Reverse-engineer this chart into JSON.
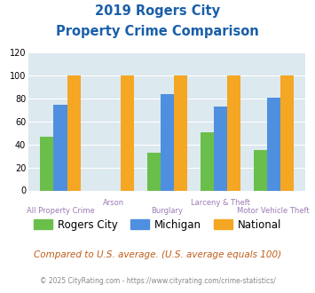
{
  "title_line1": "2019 Rogers City",
  "title_line2": "Property Crime Comparison",
  "categories": [
    "All Property Crime",
    "Arson",
    "Burglary",
    "Larceny & Theft",
    "Motor Vehicle Theft"
  ],
  "rogers_city": [
    47,
    0,
    33,
    51,
    35
  ],
  "michigan": [
    75,
    0,
    84,
    73,
    81
  ],
  "national": [
    100,
    100,
    100,
    100,
    100
  ],
  "color_rogers": "#6abf4b",
  "color_michigan": "#4f8fdf",
  "color_national": "#f5a623",
  "ylim": [
    0,
    120
  ],
  "yticks": [
    0,
    20,
    40,
    60,
    80,
    100,
    120
  ],
  "bg_color": "#dce9ef",
  "title_color": "#1a5fa8",
  "xlabel_color_even": "#9b7bb5",
  "xlabel_color_odd": "#9b7bb5",
  "footer_text1": "Compared to U.S. average. (U.S. average equals 100)",
  "footer_text2": "© 2025 CityRating.com - https://www.cityrating.com/crime-statistics/",
  "footer_color1": "#c05c1a",
  "footer_color2": "#888888",
  "legend_labels": [
    "Rogers City",
    "Michigan",
    "National"
  ]
}
